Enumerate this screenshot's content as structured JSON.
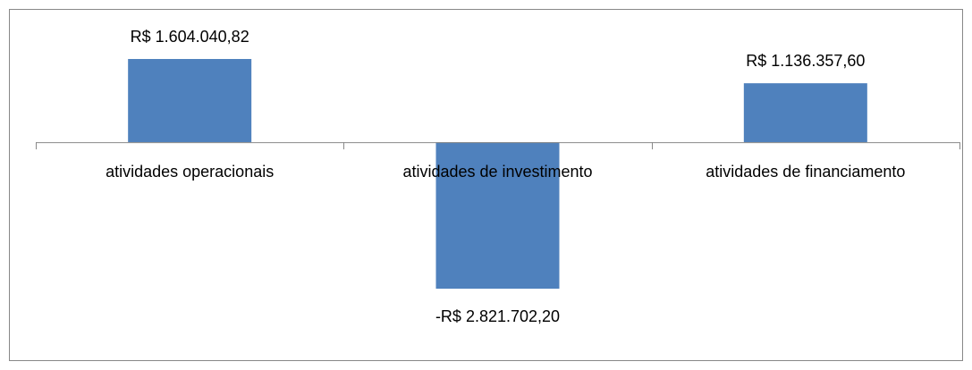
{
  "chart_data": {
    "type": "bar",
    "categories": [
      "atividades operacionais",
      "atividades de investimento",
      "atividades de financiamento"
    ],
    "values": [
      1604040.82,
      -2821702.2,
      1136357.6
    ],
    "value_labels": [
      "R$ 1.604.040,82",
      "-R$ 2.821.702,20",
      "R$ 1.136.357,60"
    ],
    "color": "#4f81bd"
  }
}
